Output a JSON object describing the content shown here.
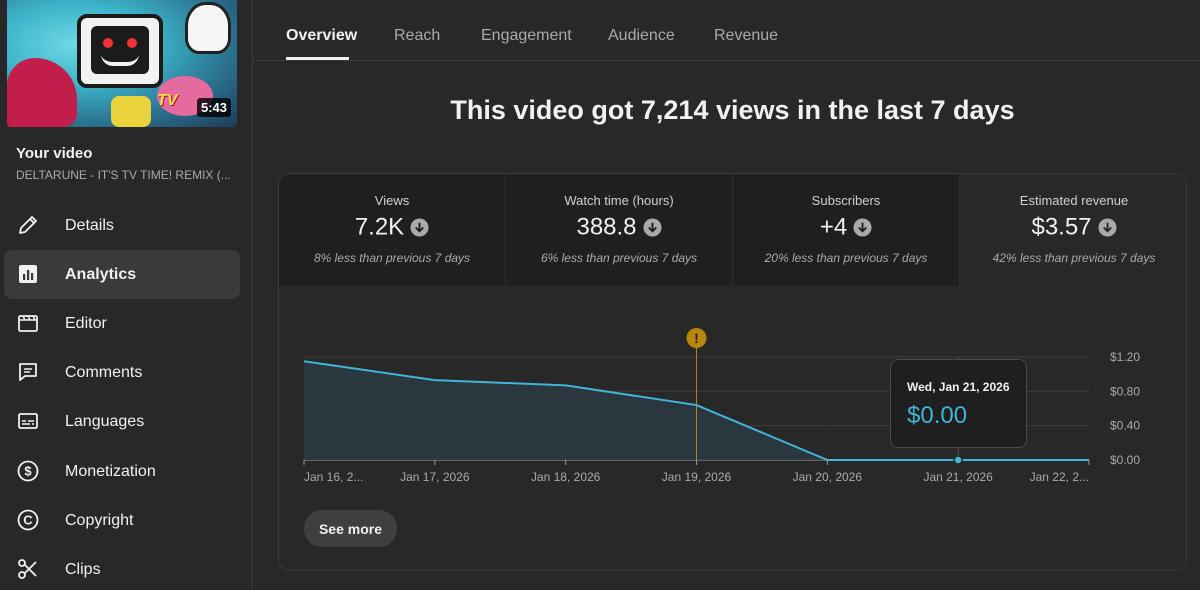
{
  "sidebar": {
    "thumbnail": {
      "duration": "5:43",
      "caption": "TV"
    },
    "your_video_label": "Your video",
    "video_title": "DELTARUNE - IT'S TV TIME! REMIX (...",
    "items": [
      {
        "label": "Details",
        "icon": "pencil-icon"
      },
      {
        "label": "Analytics",
        "icon": "analytics-icon",
        "active": true
      },
      {
        "label": "Editor",
        "icon": "clapperboard-icon"
      },
      {
        "label": "Comments",
        "icon": "comment-icon"
      },
      {
        "label": "Languages",
        "icon": "subtitles-icon"
      },
      {
        "label": "Monetization",
        "icon": "dollar-icon"
      },
      {
        "label": "Copyright",
        "icon": "copyright-icon"
      },
      {
        "label": "Clips",
        "icon": "scissors-icon"
      }
    ]
  },
  "tabs": [
    {
      "label": "Overview",
      "active": true
    },
    {
      "label": "Reach"
    },
    {
      "label": "Engagement"
    },
    {
      "label": "Audience"
    },
    {
      "label": "Revenue"
    }
  ],
  "headline": "This video got 7,214 views in the last 7 days",
  "metrics": [
    {
      "label": "Views",
      "value": "7.2K",
      "trend": "down",
      "sub": "8% less than previous 7 days"
    },
    {
      "label": "Watch time (hours)",
      "value": "388.8",
      "trend": "down",
      "sub": "6% less than previous 7 days"
    },
    {
      "label": "Subscribers",
      "value": "+4",
      "trend": "down",
      "sub": "20% less than previous 7 days"
    },
    {
      "label": "Estimated revenue",
      "value": "$3.57",
      "trend": "down",
      "sub": "42% less than previous 7 days",
      "active": true
    }
  ],
  "chart_data": {
    "type": "area",
    "x": [
      "Jan 16, 2...",
      "Jan 17, 2026",
      "Jan 18, 2026",
      "Jan 19, 2026",
      "Jan 20, 2026",
      "Jan 21, 2026",
      "Jan 22, 2..."
    ],
    "series": [
      {
        "values": [
          1.15,
          0.93,
          0.87,
          0.64,
          0.0,
          0.0,
          0.0
        ]
      }
    ],
    "y_ticks": [
      "$1.20",
      "$0.80",
      "$0.40",
      "$0.00"
    ],
    "ylim": [
      0,
      1.2
    ],
    "grid": true,
    "marker_index": 3,
    "colors": {
      "line": "#41b4d9",
      "fill": "#2a3a42",
      "marker": "#b8860b"
    }
  },
  "tooltip": {
    "date": "Wed, Jan 21, 2026",
    "value": "$0.00"
  },
  "see_more": "See more",
  "colors": {
    "accent": "#41b4d9",
    "background": "#282828"
  }
}
